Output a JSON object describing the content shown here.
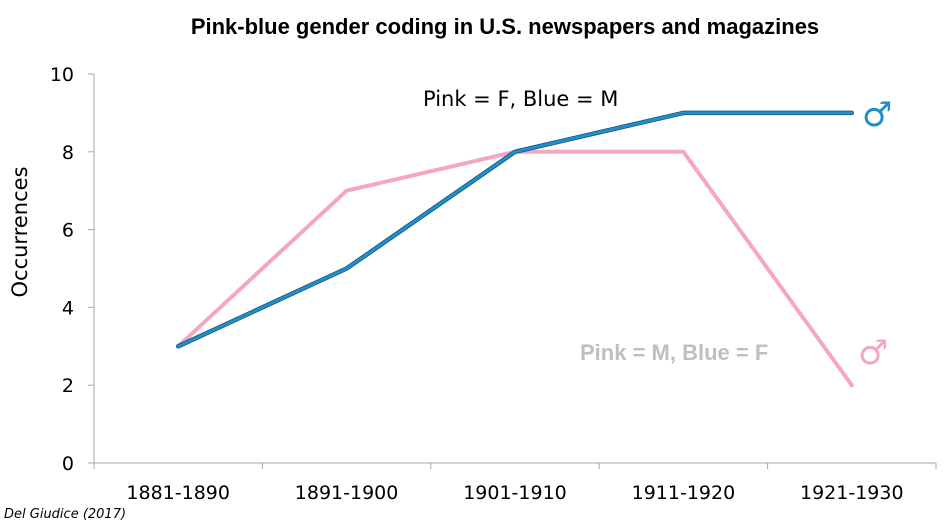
{
  "chart_data": {
    "type": "line",
    "title": "Pink-blue gender coding in U.S. newspapers and magazines",
    "xlabel": "",
    "ylabel": "Occurrences",
    "categories": [
      "1881-1890",
      "1891-1900",
      "1901-1910",
      "1911-1920",
      "1921-1930"
    ],
    "ylim": [
      0,
      10
    ],
    "yticks": [
      "0",
      "2",
      "4",
      "6",
      "8",
      "10"
    ],
    "grid": false,
    "series": [
      {
        "values": [
          3,
          7,
          8,
          8,
          2
        ],
        "color": "#f4a6c3"
      },
      {
        "values": [
          3,
          5,
          8,
          9,
          9
        ],
        "color": "#1f8fc7"
      }
    ],
    "annotations": {
      "pink_f_blue_m": "Pink = F, Blue = M",
      "pink_m_blue_f": "Pink = M, Blue = F",
      "male_symbol": "♂"
    },
    "symbol_colors": {
      "blue": "#1f8fc7",
      "pink": "#f4a6c3"
    }
  },
  "credit": "Del Giudice (2017)"
}
